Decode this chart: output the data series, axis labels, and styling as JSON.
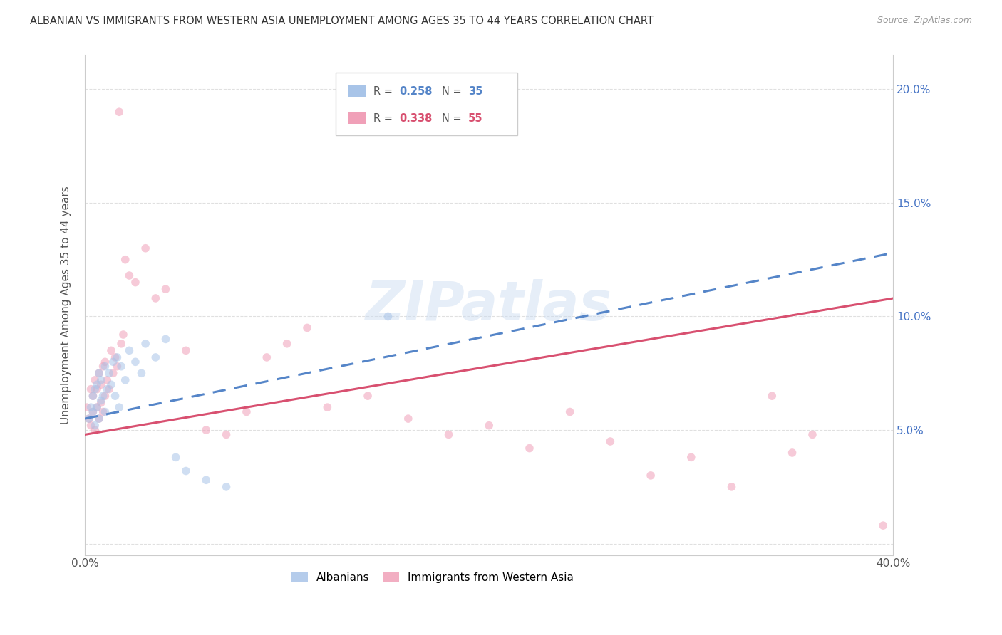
{
  "title": "ALBANIAN VS IMMIGRANTS FROM WESTERN ASIA UNEMPLOYMENT AMONG AGES 35 TO 44 YEARS CORRELATION CHART",
  "source": "Source: ZipAtlas.com",
  "ylabel": "Unemployment Among Ages 35 to 44 years",
  "xlim": [
    0.0,
    0.4
  ],
  "ylim": [
    -0.005,
    0.215
  ],
  "xticks": [
    0.0,
    0.05,
    0.1,
    0.15,
    0.2,
    0.25,
    0.3,
    0.35,
    0.4
  ],
  "xtick_labels": [
    "0.0%",
    "",
    "",
    "",
    "",
    "",
    "",
    "",
    "40.0%"
  ],
  "yticks_right": [
    0.05,
    0.1,
    0.15,
    0.2
  ],
  "ytick_right_labels": [
    "5.0%",
    "10.0%",
    "15.0%",
    "20.0%"
  ],
  "background_color": "#ffffff",
  "grid_color": "#e0e0e0",
  "albanians_color": "#a8c4e8",
  "immigrants_color": "#f0a0b8",
  "albanians_line_color": "#5585c8",
  "immigrants_line_color": "#d85070",
  "alb_R": "0.258",
  "alb_N": "35",
  "imm_R": "0.338",
  "imm_N": "55",
  "watermark": "ZIPatlas",
  "marker_size": 70,
  "marker_alpha": 0.55,
  "albanians_x": [
    0.002,
    0.003,
    0.004,
    0.004,
    0.005,
    0.005,
    0.006,
    0.006,
    0.007,
    0.007,
    0.008,
    0.008,
    0.009,
    0.01,
    0.01,
    0.011,
    0.012,
    0.013,
    0.014,
    0.015,
    0.016,
    0.017,
    0.018,
    0.02,
    0.022,
    0.025,
    0.028,
    0.03,
    0.035,
    0.04,
    0.045,
    0.05,
    0.06,
    0.07,
    0.15
  ],
  "albanians_y": [
    0.055,
    0.06,
    0.058,
    0.065,
    0.052,
    0.068,
    0.06,
    0.07,
    0.055,
    0.075,
    0.063,
    0.072,
    0.065,
    0.058,
    0.078,
    0.068,
    0.075,
    0.07,
    0.08,
    0.065,
    0.082,
    0.06,
    0.078,
    0.072,
    0.085,
    0.08,
    0.075,
    0.088,
    0.082,
    0.09,
    0.038,
    0.032,
    0.028,
    0.025,
    0.1
  ],
  "immigrants_x": [
    0.001,
    0.002,
    0.003,
    0.003,
    0.004,
    0.004,
    0.005,
    0.005,
    0.006,
    0.006,
    0.007,
    0.007,
    0.008,
    0.008,
    0.009,
    0.009,
    0.01,
    0.01,
    0.011,
    0.012,
    0.013,
    0.014,
    0.015,
    0.016,
    0.017,
    0.018,
    0.019,
    0.02,
    0.022,
    0.025,
    0.03,
    0.035,
    0.04,
    0.05,
    0.06,
    0.07,
    0.08,
    0.09,
    0.1,
    0.11,
    0.12,
    0.14,
    0.16,
    0.18,
    0.2,
    0.22,
    0.24,
    0.26,
    0.28,
    0.3,
    0.32,
    0.34,
    0.35,
    0.36,
    0.395
  ],
  "immigrants_y": [
    0.06,
    0.055,
    0.052,
    0.068,
    0.058,
    0.065,
    0.05,
    0.072,
    0.06,
    0.068,
    0.055,
    0.075,
    0.062,
    0.07,
    0.058,
    0.078,
    0.065,
    0.08,
    0.072,
    0.068,
    0.085,
    0.075,
    0.082,
    0.078,
    0.19,
    0.088,
    0.092,
    0.125,
    0.118,
    0.115,
    0.13,
    0.108,
    0.112,
    0.085,
    0.05,
    0.048,
    0.058,
    0.082,
    0.088,
    0.095,
    0.06,
    0.065,
    0.055,
    0.048,
    0.052,
    0.042,
    0.058,
    0.045,
    0.03,
    0.038,
    0.025,
    0.065,
    0.04,
    0.048,
    0.008
  ],
  "alb_line_x0": 0.0,
  "alb_line_y0": 0.055,
  "alb_line_x1": 0.4,
  "alb_line_y1": 0.128,
  "imm_line_x0": 0.0,
  "imm_line_y0": 0.048,
  "imm_line_x1": 0.4,
  "imm_line_y1": 0.108
}
